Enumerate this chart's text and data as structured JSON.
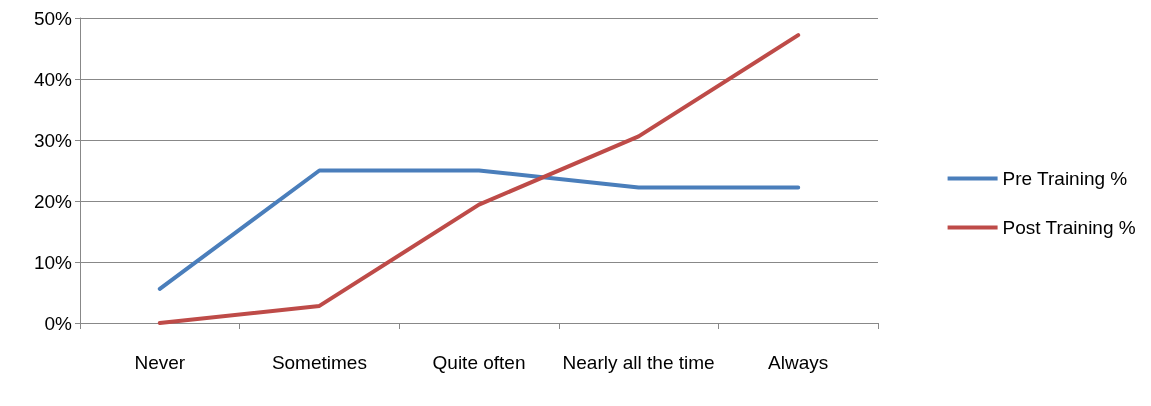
{
  "chart_data": {
    "type": "line",
    "categories": [
      "Never",
      "Sometimes",
      "Quite often",
      "Nearly all the time",
      "Always"
    ],
    "series": [
      {
        "name": "Pre Training %",
        "color": "#4a7ebb",
        "values": [
          5.6,
          25,
          25,
          22.2,
          22.2
        ]
      },
      {
        "name": "Post Training %",
        "color": "#be4b48",
        "values": [
          0,
          2.8,
          19.4,
          30.6,
          47.2
        ]
      }
    ],
    "ylim": [
      0,
      50
    ],
    "yticks": [
      {
        "value": 0,
        "label": "0%"
      },
      {
        "value": 10,
        "label": "10%"
      },
      {
        "value": 20,
        "label": "20%"
      },
      {
        "value": 30,
        "label": "30%"
      },
      {
        "value": 40,
        "label": "40%"
      },
      {
        "value": 50,
        "label": "50%"
      }
    ],
    "grid": "y",
    "legend": "right",
    "marker": "none",
    "line_style": "solid"
  }
}
